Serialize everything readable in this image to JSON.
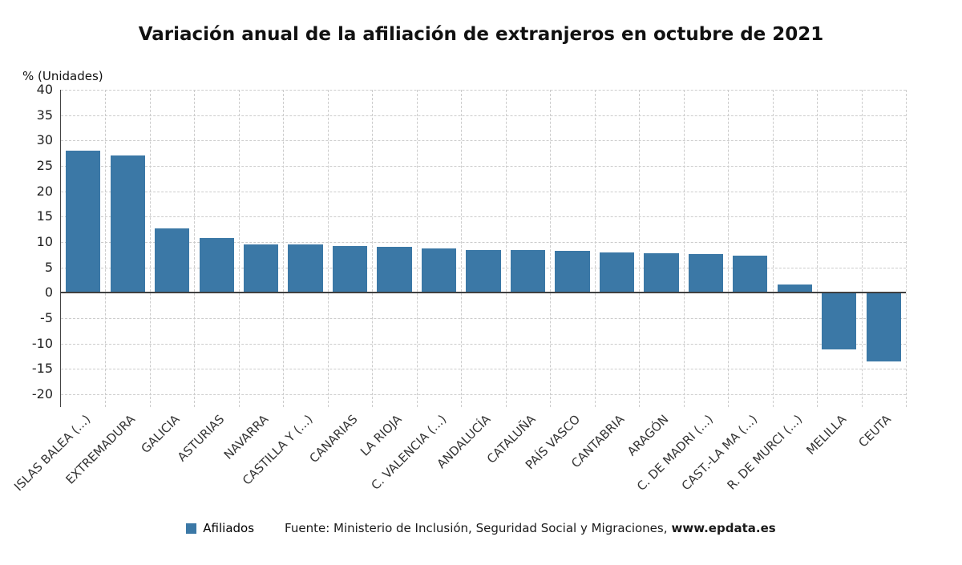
{
  "header": {
    "title": "Variación anual de la afiliación de extranjeros en octubre de 2021"
  },
  "axes": {
    "y_label": "% (Unidades)"
  },
  "legend": {
    "label": "Afiliados"
  },
  "source": {
    "prefix": "Fuente: Ministerio de Inclusión, Seguridad Social y Migraciones,",
    "link": "www.epdata.es"
  },
  "chart_data": {
    "type": "bar",
    "title": "Variación anual de la afiliación de extranjeros en octubre de 2021",
    "xlabel": "",
    "ylabel": "% (Unidades)",
    "series_name": "Afiliados",
    "categories": [
      "ISLAS BALEA (...)",
      "EXTREMADURA",
      "GALICIA",
      "ASTURIAS",
      "NAVARRA",
      "CASTILLA Y (...)",
      "CANARIAS",
      "LA RIOJA",
      "C. VALENCIA (...)",
      "ANDALUCÍA",
      "CATALUÑA",
      "PAÍS VASCO",
      "CANTABRIA",
      "ARAGÓN",
      "C. DE MADRI (...)",
      "CAST.-LA MA (...)",
      "R. DE MURCI (...)",
      "MELILLA",
      "CEUTA"
    ],
    "values": [
      28,
      27,
      12.7,
      10.8,
      9.6,
      9.5,
      9.2,
      9,
      8.7,
      8.5,
      8.5,
      8.2,
      7.9,
      7.8,
      7.7,
      7.4,
      1.7,
      -11.2,
      -13.5
    ],
    "ylim": [
      -22.5,
      40
    ],
    "yticks": [
      40,
      35,
      30,
      25,
      20,
      15,
      10,
      5,
      0,
      -5,
      -10,
      -15,
      -20
    ],
    "grid": true,
    "legend_position": "bottom",
    "bar_color": "#3b78a6",
    "grid_color": "#cccccc",
    "zero_line_color": "#404040"
  }
}
